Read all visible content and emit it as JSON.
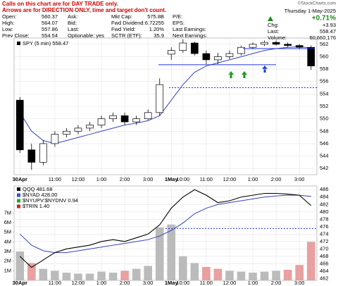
{
  "header": {
    "notes": [
      "Calls on this chart are for DAY TRADE only.",
      "Arrows are for DIRECTION ONLY, time and target don't count."
    ],
    "source": "©StockCharts.com",
    "columns": [
      [
        {
          "label": "Open:",
          "value": "560.37"
        },
        {
          "label": "High:",
          "value": "564.07"
        },
        {
          "label": "Low:",
          "value": "557.86"
        },
        {
          "label": "Prev Close:",
          "value": "554.54"
        }
      ],
      [
        {
          "label": "Ask:"
        },
        {
          "label": "Bid:"
        },
        {
          "label": "Last:"
        },
        {
          "label": "Optionable:",
          "value": "yes"
        }
      ],
      [
        {
          "label": "Mkt Cap:",
          "value": "575.8B"
        },
        {
          "label": "Fwd Dividend:",
          "value": "6.72255"
        },
        {
          "label": "Fwd Yield:",
          "value": "1.20%"
        },
        {
          "label": "SCTR (ETF):",
          "value": "35.9"
        }
      ],
      [
        {
          "label": "P/E:"
        },
        {
          "label": "EPS:"
        },
        {
          "label": "Last Earnings:"
        },
        {
          "label": "Next Earnings:"
        }
      ]
    ],
    "date": "Thursday 1-May-2025",
    "change_pct": "+0.71%",
    "summary": [
      {
        "label": "Chg:",
        "value": "+3.93"
      },
      {
        "label": "Last:",
        "value": "558.47"
      },
      {
        "label": "Volume:",
        "value": "60,660,176"
      }
    ]
  },
  "chart_data": [
    {
      "type": "candlestick",
      "name": "SPY (5 min) 558.47",
      "categories": [
        "30Apr",
        null,
        null,
        "11:00",
        null,
        "12:00",
        null,
        "1:00",
        null,
        "2:00",
        null,
        "3:00",
        null,
        "1May",
        "10:00",
        null,
        "11:00",
        null,
        "12:00",
        null,
        "1:00",
        null,
        "2:00",
        null,
        "3:00",
        null
      ],
      "open": [
        553,
        545,
        543,
        546,
        547.5,
        548,
        548.5,
        549,
        550,
        550.5,
        549.5,
        550,
        551,
        560.4,
        561,
        562.2,
        560.5,
        559.5,
        560,
        560.5,
        561.5,
        562,
        562.3,
        562,
        561.8,
        561.5
      ],
      "high": [
        553.5,
        546,
        546.5,
        548,
        548.5,
        549,
        549.5,
        550.5,
        551,
        551,
        550.5,
        551.5,
        556.5,
        561.5,
        562.8,
        562.4,
        561,
        560.6,
        561,
        561.8,
        562.3,
        562.6,
        562.6,
        562.3,
        562,
        561.8
      ],
      "low": [
        544.5,
        541.8,
        542.5,
        545.5,
        547,
        547.5,
        548,
        548.5,
        549.5,
        549,
        549,
        549.8,
        550.5,
        559.5,
        560.6,
        560.2,
        558.8,
        558.8,
        559.6,
        560.2,
        561.2,
        561.7,
        561.8,
        561.5,
        561.2,
        557.9
      ],
      "close": [
        545,
        543,
        546,
        547.5,
        548,
        548.5,
        549,
        550,
        550.5,
        549.5,
        550,
        551,
        555.5,
        561,
        562.2,
        560.5,
        559.5,
        560,
        560.5,
        561.5,
        562,
        562.3,
        562,
        561.8,
        561.5,
        558.5
      ],
      "ma": [
        551,
        548,
        546.5,
        546,
        546.5,
        547,
        547.5,
        548,
        548.5,
        549,
        549.3,
        549.7,
        550.5,
        553,
        555.5,
        557.5,
        558.5,
        559,
        559.5,
        560,
        560.5,
        561,
        561.3,
        561.5,
        561.6,
        561.4
      ],
      "levels": [
        558.7,
        561.3,
        555
      ],
      "ylim": [
        541,
        563
      ],
      "yticks": [
        542,
        544,
        546,
        548,
        550,
        552,
        554,
        556,
        558,
        560,
        562
      ],
      "grid": true
    },
    {
      "type": "line",
      "categories": [
        "30Apr",
        null,
        null,
        "11:00",
        null,
        "12:00",
        null,
        "1:00",
        null,
        "2:00",
        null,
        "3:00",
        null,
        "1May",
        "10:00",
        null,
        "11:00",
        null,
        "12:00",
        null,
        "1:00",
        null,
        "2:00",
        null,
        "3:00",
        null
      ],
      "series": [
        {
          "name": "QQQ 481.68",
          "color": "#000000",
          "values": [
            468,
            465,
            467,
            469,
            470,
            470.5,
            471,
            472,
            472.5,
            472,
            473,
            474,
            476.5,
            481,
            484,
            486,
            484.5,
            482.5,
            483,
            484,
            484.5,
            485,
            485,
            484.8,
            484.5,
            481.7
          ]
        },
        {
          "name": "Volume",
          "axis": "y2",
          "color": "#bbbbbb",
          "values": [
            3.0,
            1.8,
            1.2,
            1.0,
            0.8,
            0.7,
            0.7,
            0.9,
            0.8,
            1.0,
            1.2,
            1.5,
            5.5,
            5.8,
            2.5,
            1.8,
            1.4,
            1.2,
            1.0,
            0.9,
            0.8,
            0.9,
            1.0,
            1.1,
            1.6,
            4.0
          ]
        }
      ],
      "ma": [
        474,
        471,
        469.5,
        469,
        469,
        469.5,
        470,
        470.5,
        471,
        471.5,
        472,
        472.5,
        473.5,
        475,
        477,
        479.5,
        481,
        482,
        482.5,
        483,
        483.5,
        484,
        484.3,
        484.5,
        484.5,
        484.2
      ],
      "indicators": [
        {
          "name": "$NYAD 428.00",
          "color": "#3355cc"
        },
        {
          "name": "$NYUPV:$NYDNV 0.94",
          "color": "#22aa22"
        },
        {
          "name": "$TRIN 1.40",
          "color": "#cc2222"
        }
      ],
      "levels": [
        475.5
      ],
      "ylim": [
        461.5,
        487
      ],
      "yticks": [
        462,
        464,
        466,
        468,
        470,
        472,
        474,
        476,
        478,
        480,
        482,
        484,
        486
      ],
      "y2lim": [
        0,
        9.8
      ],
      "y2ticks": [
        {
          "value": 1,
          "label": "1M"
        },
        {
          "value": 2,
          "label": "2M"
        },
        {
          "value": 3,
          "label": "3M"
        },
        {
          "value": 4,
          "label": "4M"
        },
        {
          "value": 5,
          "label": "5M"
        },
        {
          "value": 6,
          "label": "6M"
        },
        {
          "value": 7,
          "label": "7M"
        }
      ],
      "grid": true
    }
  ]
}
